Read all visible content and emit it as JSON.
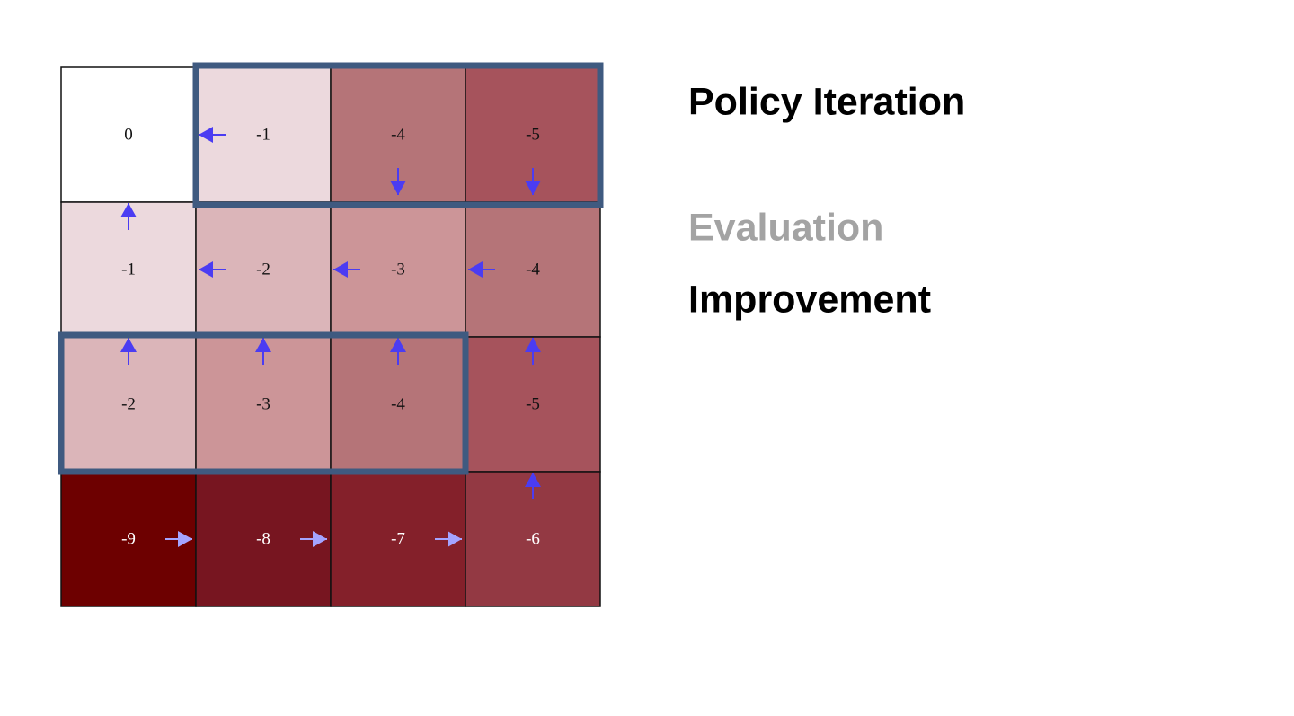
{
  "title": "Policy Iteration",
  "steps": [
    "Evaluation",
    "Improvement"
  ],
  "grid": {
    "rows": [
      [
        0,
        -1,
        -4,
        -5
      ],
      [
        -1,
        -2,
        -3,
        -4
      ],
      [
        -2,
        -3,
        -4,
        -5
      ],
      [
        -9,
        -8,
        -7,
        -6
      ]
    ]
  }
}
